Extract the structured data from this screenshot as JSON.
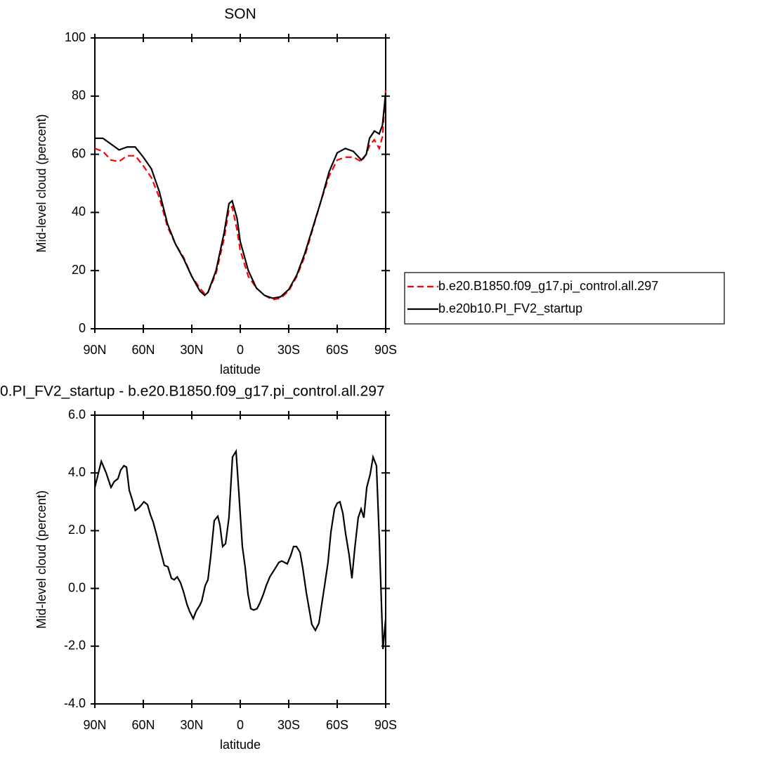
{
  "chart_data": [
    {
      "type": "line",
      "title": "SON",
      "x_label": "latitude",
      "y_label": "Mid-level cloud (percent)",
      "xlim": [
        90,
        -90
      ],
      "ylim": [
        0,
        100
      ],
      "xticks": [
        {
          "value": 90,
          "label": "90N"
        },
        {
          "value": 60,
          "label": "60N"
        },
        {
          "value": 30,
          "label": "30N"
        },
        0,
        {
          "value": -30,
          "label": "30S"
        },
        {
          "value": -60,
          "label": "60S"
        },
        {
          "value": -90,
          "label": "90S"
        }
      ],
      "yticks": [
        0,
        20,
        40,
        60,
        80,
        100
      ],
      "legend": "right",
      "x": [
        90,
        85,
        80,
        75,
        70,
        65,
        60,
        55,
        50,
        45,
        40,
        35,
        30,
        25,
        22,
        20,
        15,
        10,
        7,
        5,
        2,
        0,
        -5,
        -10,
        -15,
        -20,
        -25,
        -30,
        -35,
        -40,
        -45,
        -50,
        -55,
        -60,
        -65,
        -70,
        -75,
        -78,
        -80,
        -83,
        -86,
        -88,
        -90
      ],
      "series": [
        {
          "name": "b.e20.B1850.f09_g17.pi_control.all.297",
          "color": "#ff0000",
          "dashed": true,
          "values": [
            62,
            61,
            58,
            57.5,
            59.5,
            59.5,
            56,
            52,
            45,
            35,
            29,
            24.5,
            18,
            14,
            12,
            12.5,
            19,
            31,
            41,
            42,
            34,
            27,
            18,
            14,
            11.5,
            10,
            10.5,
            13,
            18,
            25,
            34.5,
            44,
            52.5,
            58,
            59,
            59,
            57.5,
            60,
            63,
            65,
            62,
            66,
            82
          ]
        },
        {
          "name": "b.e20b10.PI_FV2_startup",
          "color": "#000000",
          "dashed": false,
          "values": [
            65.5,
            65.5,
            63.5,
            61.5,
            62.5,
            62.5,
            59,
            55,
            47,
            36,
            29,
            24,
            18,
            13,
            11.5,
            12.5,
            20,
            33,
            43,
            44,
            38,
            30,
            20,
            14,
            11.5,
            10.5,
            11,
            13.5,
            18.5,
            26,
            35,
            44,
            54,
            60.5,
            62,
            61,
            58,
            60,
            65.5,
            68,
            67,
            70,
            81
          ]
        }
      ]
    },
    {
      "type": "line",
      "title": "0.PI_FV2_startup - b.e20.B1850.f09_g17.pi_control.all.297",
      "x_label": "latitude",
      "y_label": "Mid-level cloud (percent)",
      "xlim": [
        90,
        -90
      ],
      "ylim": [
        -4,
        6
      ],
      "xticks": [
        {
          "value": 90,
          "label": "90N"
        },
        {
          "value": 60,
          "label": "60N"
        },
        {
          "value": 30,
          "label": "30N"
        },
        0,
        {
          "value": -30,
          "label": "30S"
        },
        {
          "value": -60,
          "label": "60S"
        },
        {
          "value": -90,
          "label": "90S"
        }
      ],
      "yticks": [
        {
          "value": -4,
          "label": "-4.0"
        },
        {
          "value": -2,
          "label": "-2.0"
        },
        {
          "value": 0,
          "label": "0.0"
        },
        {
          "value": 2,
          "label": "2.0"
        },
        {
          "value": 4,
          "label": "4.0"
        },
        {
          "value": 6,
          "label": "6.0"
        }
      ],
      "x": [
        90,
        86,
        83,
        80,
        78,
        75.7,
        74,
        72,
        70.4,
        68.7,
        67,
        65,
        62.6,
        59.6,
        57.4,
        55.6,
        53.9,
        52,
        50,
        47,
        44.8,
        42.6,
        40.9,
        39,
        37,
        35.2,
        33,
        31.3,
        29.1,
        27.4,
        25.2,
        23.9,
        21.7,
        20,
        18.3,
        16.1,
        13.9,
        12.6,
        10.9,
        9.1,
        7,
        4.8,
        2.6,
        0.9,
        -1.3,
        -3,
        -4.8,
        -6.5,
        -8.3,
        -10.4,
        -12.2,
        -14.3,
        -16.1,
        -18.3,
        -20,
        -21.7,
        -23.9,
        -25.7,
        -27.4,
        -29.1,
        -31.3,
        -33,
        -34.8,
        -37,
        -38.7,
        -40.9,
        -44.3,
        -46.5,
        -48.7,
        -50.3,
        -52.2,
        -54.3,
        -56.1,
        -58.3,
        -60,
        -61.7,
        -63.5,
        -65.2,
        -67.4,
        -69.1,
        -70.9,
        -73,
        -74.8,
        -76.5,
        -78.3,
        -80.4,
        -82.2,
        -84.3,
        -86.1,
        -88.3,
        -90
      ],
      "series": [
        {
          "color": "#000000",
          "dashed": false,
          "values": [
            3.5,
            4.4,
            4.0,
            3.5,
            3.7,
            3.8,
            4.1,
            4.25,
            4.2,
            3.4,
            3.1,
            2.7,
            2.8,
            3.0,
            2.9,
            2.55,
            2.3,
            1.9,
            1.45,
            0.8,
            0.75,
            0.35,
            0.3,
            0.4,
            0.2,
            -0.1,
            -0.55,
            -0.8,
            -1.05,
            -0.8,
            -0.6,
            -0.45,
            0.1,
            0.3,
            1.1,
            2.35,
            2.5,
            2.2,
            1.45,
            1.55,
            2.45,
            4.55,
            4.75,
            3.35,
            1.45,
            0.75,
            -0.2,
            -0.7,
            -0.75,
            -0.7,
            -0.5,
            -0.2,
            0.1,
            0.4,
            0.55,
            0.7,
            0.9,
            0.95,
            0.9,
            0.85,
            1.15,
            1.45,
            1.45,
            1.25,
            0.7,
            -0.15,
            -1.25,
            -1.45,
            -1.2,
            -0.6,
            0.1,
            0.9,
            1.95,
            2.75,
            2.95,
            3.0,
            2.6,
            1.9,
            1.15,
            0.35,
            1.4,
            2.45,
            2.75,
            2.45,
            3.5,
            3.95,
            4.55,
            4.25,
            1.65,
            -2.1,
            -1.05
          ]
        }
      ]
    }
  ]
}
